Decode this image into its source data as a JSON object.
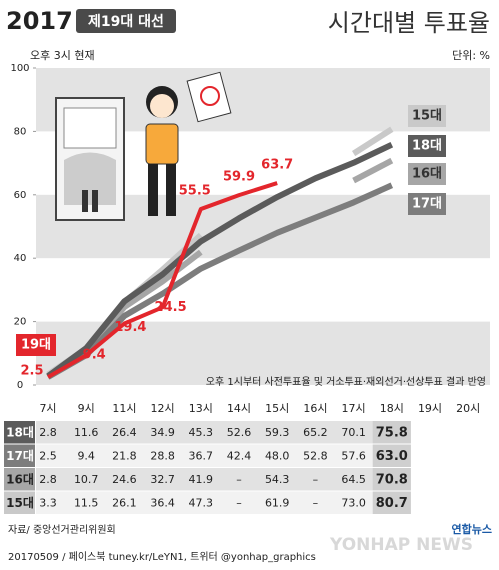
{
  "chart_data": {
    "type": "line",
    "logo": "2017",
    "election": "제19대 대선",
    "title": "시간대별 투표율",
    "subtitle": "오후 3시 현재",
    "unit": "단위: %",
    "categories": [
      "7시",
      "9시",
      "11시",
      "12시",
      "13시",
      "14시",
      "15시",
      "16시",
      "17시",
      "18시",
      "19시",
      "20시"
    ],
    "ylim": [
      0,
      100
    ],
    "yticks": [
      0,
      20,
      40,
      60,
      80,
      100
    ],
    "series": [
      {
        "name": "19대",
        "color": "#e3262c",
        "values": [
          2.5,
          9.4,
          19.4,
          24.5,
          55.5,
          59.9,
          63.7,
          null,
          null,
          null,
          null,
          null
        ]
      },
      {
        "name": "18대",
        "color": "#5b5b5b",
        "values": [
          2.8,
          11.6,
          26.4,
          34.9,
          45.3,
          52.6,
          59.3,
          65.2,
          70.1,
          75.8,
          null,
          null
        ],
        "value_labels": [
          "2.8",
          "11.6",
          "26.4",
          "34.9",
          "45.3",
          "52.6",
          "59.3",
          "65.2",
          "70.1",
          "75.8",
          null,
          null
        ]
      },
      {
        "name": "17대",
        "color": "#7d7d7d",
        "values": [
          2.5,
          9.4,
          21.8,
          28.8,
          36.7,
          42.4,
          48.0,
          52.8,
          57.6,
          63.0,
          null,
          null
        ],
        "value_labels": [
          "2.5",
          "9.4",
          "21.8",
          "28.8",
          "36.7",
          "42.4",
          "48.0",
          "52.8",
          "57.6",
          "63.0",
          null,
          null
        ]
      },
      {
        "name": "16대",
        "color": "#a6a6a6",
        "values": [
          2.8,
          10.7,
          24.6,
          32.7,
          41.9,
          null,
          54.3,
          null,
          64.5,
          70.8,
          null,
          null
        ],
        "value_labels": [
          "2.8",
          "10.7",
          "24.6",
          "32.7",
          "41.9",
          "–",
          "54.3",
          "–",
          "64.5",
          "70.8",
          null,
          null
        ]
      },
      {
        "name": "15대",
        "color": "#c9c9c9",
        "values": [
          3.3,
          11.5,
          26.1,
          36.4,
          47.3,
          null,
          61.9,
          null,
          73.0,
          80.7,
          null,
          null
        ],
        "value_labels": [
          "3.3",
          "11.5",
          "26.1",
          "36.4",
          "47.3",
          "–",
          "61.9",
          "–",
          "73.0",
          "80.7",
          null,
          null
        ]
      }
    ],
    "annotation": "오후 1시부터 사전투표율 및 거소투표·재외선거·선상투표 결과 반영",
    "source": "자료/ 중앙선거관리위원회",
    "footer": "20170509 / 페이스북 tuney.kr/LeYN1, 트위터 @yonhap_graphics",
    "watermark": "YONHAP NEWS",
    "brand": "연합뉴스"
  }
}
